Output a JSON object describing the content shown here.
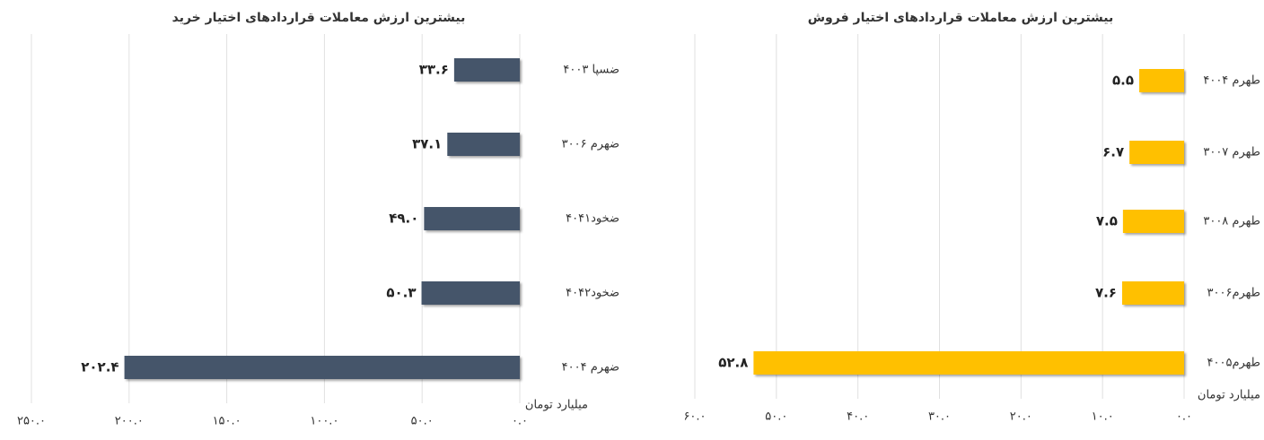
{
  "chart_data": [
    {
      "type": "barh",
      "title": "بیشترین ارزش معاملات قراردادهای اختیار خرید",
      "x_label": "میلیارد تومان",
      "reversed": true,
      "grid": true,
      "color": "#44546a",
      "categories": [
        "ضسپا ۴۰۰۳",
        "ضهرم ۳۰۰۶",
        "ضخود۴۰۴۱",
        "ضخود۴۰۴۲",
        "ضهرم ۴۰۰۴"
      ],
      "values": [
        33.6,
        37.1,
        49.0,
        50.3,
        202.4
      ],
      "value_labels": [
        "۳۳.۶",
        "۳۷.۱",
        "۴۹.۰",
        "۵۰.۳",
        "۲۰۲.۴"
      ],
      "xlim": [
        0,
        250
      ],
      "xticks": [
        {
          "value": 0,
          "label": "۰.۰"
        },
        {
          "value": 50,
          "label": "۵۰.۰"
        },
        {
          "value": 100,
          "label": "۱۰۰.۰"
        },
        {
          "value": 150,
          "label": "۱۵۰.۰"
        },
        {
          "value": 200,
          "label": "۲۰۰.۰"
        },
        {
          "value": 250,
          "label": "۲۵۰.۰"
        }
      ]
    },
    {
      "type": "barh",
      "title": "بیشترین ارزش معاملات قراردادهای اختیار فروش",
      "x_label": "میلیارد تومان",
      "reversed": true,
      "grid": true,
      "color": "#ffc000",
      "categories": [
        "طهرم ۴۰۰۴",
        "طهرم ۳۰۰۷",
        "طهرم ۳۰۰۸",
        "طهرم۳۰۰۶",
        "طهرم۴۰۰۵"
      ],
      "values": [
        5.5,
        6.7,
        7.5,
        7.6,
        52.8
      ],
      "value_labels": [
        "۵.۵",
        "۶.۷",
        "۷.۵",
        "۷.۶",
        "۵۲.۸"
      ],
      "xlim": [
        0,
        60
      ],
      "xticks": [
        {
          "value": 0,
          "label": "۰.۰"
        },
        {
          "value": 10,
          "label": "۱۰.۰"
        },
        {
          "value": 20,
          "label": "۲۰.۰"
        },
        {
          "value": 30,
          "label": "۳۰.۰"
        },
        {
          "value": 40,
          "label": "۴۰.۰"
        },
        {
          "value": 50,
          "label": "۵۰.۰"
        },
        {
          "value": 60,
          "label": "۶۰.۰"
        }
      ]
    }
  ]
}
